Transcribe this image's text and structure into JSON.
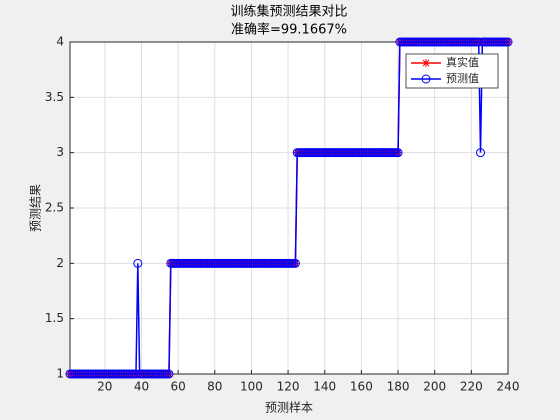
{
  "chart_data": {
    "type": "line",
    "title": "训练集预测结果对比",
    "subtitle": "准确率=99.1667%",
    "x_label": "预测样本",
    "y_label": "预测结果",
    "xlim": [
      1,
      240
    ],
    "xticks": [
      20,
      40,
      60,
      80,
      100,
      120,
      140,
      160,
      180,
      200,
      220,
      240
    ],
    "ylim": [
      1,
      4
    ],
    "yticks": [
      1,
      1.5,
      2,
      2.5,
      3,
      3.5,
      4
    ],
    "grid": true,
    "legend": "northeast",
    "series": [
      {
        "name": "真实值",
        "color": "#ff0000",
        "marker": "asterisk",
        "values": [
          1,
          1,
          1,
          1,
          1,
          1,
          1,
          1,
          1,
          1,
          1,
          1,
          1,
          1,
          1,
          1,
          1,
          1,
          1,
          1,
          1,
          1,
          1,
          1,
          1,
          1,
          1,
          1,
          1,
          1,
          1,
          1,
          1,
          1,
          1,
          1,
          1,
          1,
          1,
          1,
          1,
          1,
          1,
          1,
          1,
          1,
          1,
          1,
          1,
          1,
          1,
          1,
          1,
          1,
          1,
          2,
          2,
          2,
          2,
          2,
          2,
          2,
          2,
          2,
          2,
          2,
          2,
          2,
          2,
          2,
          2,
          2,
          2,
          2,
          2,
          2,
          2,
          2,
          2,
          2,
          2,
          2,
          2,
          2,
          2,
          2,
          2,
          2,
          2,
          2,
          2,
          2,
          2,
          2,
          2,
          2,
          2,
          2,
          2,
          2,
          2,
          2,
          2,
          2,
          2,
          2,
          2,
          2,
          2,
          2,
          2,
          2,
          2,
          2,
          2,
          2,
          2,
          2,
          2,
          2,
          2,
          2,
          2,
          2,
          3,
          3,
          3,
          3,
          3,
          3,
          3,
          3,
          3,
          3,
          3,
          3,
          3,
          3,
          3,
          3,
          3,
          3,
          3,
          3,
          3,
          3,
          3,
          3,
          3,
          3,
          3,
          3,
          3,
          3,
          3,
          3,
          3,
          3,
          3,
          3,
          3,
          3,
          3,
          3,
          3,
          3,
          3,
          3,
          3,
          3,
          3,
          3,
          3,
          3,
          3,
          3,
          3,
          3,
          3,
          3,
          4,
          4,
          4,
          4,
          4,
          4,
          4,
          4,
          4,
          4,
          4,
          4,
          4,
          4,
          4,
          4,
          4,
          4,
          4,
          4,
          4,
          4,
          4,
          4,
          4,
          4,
          4,
          4,
          4,
          4,
          4,
          4,
          4,
          4,
          4,
          4,
          4,
          4,
          4,
          4,
          4,
          4,
          4,
          4,
          4,
          4,
          4,
          4,
          4,
          4,
          4,
          4,
          4,
          4,
          4,
          4,
          4,
          4,
          4,
          4
        ]
      },
      {
        "name": "预测值",
        "color": "#0000ff",
        "marker": "circle",
        "values": [
          1,
          1,
          1,
          1,
          1,
          1,
          1,
          1,
          1,
          1,
          1,
          1,
          1,
          1,
          1,
          1,
          1,
          1,
          1,
          1,
          1,
          1,
          1,
          1,
          1,
          1,
          1,
          1,
          1,
          1,
          1,
          1,
          1,
          1,
          1,
          1,
          1,
          2,
          1,
          1,
          1,
          1,
          1,
          1,
          1,
          1,
          1,
          1,
          1,
          1,
          1,
          1,
          1,
          1,
          1,
          2,
          2,
          2,
          2,
          2,
          2,
          2,
          2,
          2,
          2,
          2,
          2,
          2,
          2,
          2,
          2,
          2,
          2,
          2,
          2,
          2,
          2,
          2,
          2,
          2,
          2,
          2,
          2,
          2,
          2,
          2,
          2,
          2,
          2,
          2,
          2,
          2,
          2,
          2,
          2,
          2,
          2,
          2,
          2,
          2,
          2,
          2,
          2,
          2,
          2,
          2,
          2,
          2,
          2,
          2,
          2,
          2,
          2,
          2,
          2,
          2,
          2,
          2,
          2,
          2,
          2,
          2,
          2,
          2,
          3,
          3,
          3,
          3,
          3,
          3,
          3,
          3,
          3,
          3,
          3,
          3,
          3,
          3,
          3,
          3,
          3,
          3,
          3,
          3,
          3,
          3,
          3,
          3,
          3,
          3,
          3,
          3,
          3,
          3,
          3,
          3,
          3,
          3,
          3,
          3,
          3,
          3,
          3,
          3,
          3,
          3,
          3,
          3,
          3,
          3,
          3,
          3,
          3,
          3,
          3,
          3,
          3,
          3,
          3,
          3,
          4,
          4,
          4,
          4,
          4,
          4,
          4,
          4,
          4,
          4,
          4,
          4,
          4,
          4,
          4,
          4,
          4,
          4,
          4,
          4,
          4,
          4,
          4,
          4,
          4,
          4,
          4,
          4,
          4,
          4,
          4,
          4,
          4,
          4,
          4,
          4,
          4,
          4,
          4,
          4,
          4,
          4,
          4,
          4,
          3,
          4,
          4,
          4,
          4,
          4,
          4,
          4,
          4,
          4,
          4,
          4,
          4,
          4,
          4,
          4
        ]
      }
    ]
  }
}
